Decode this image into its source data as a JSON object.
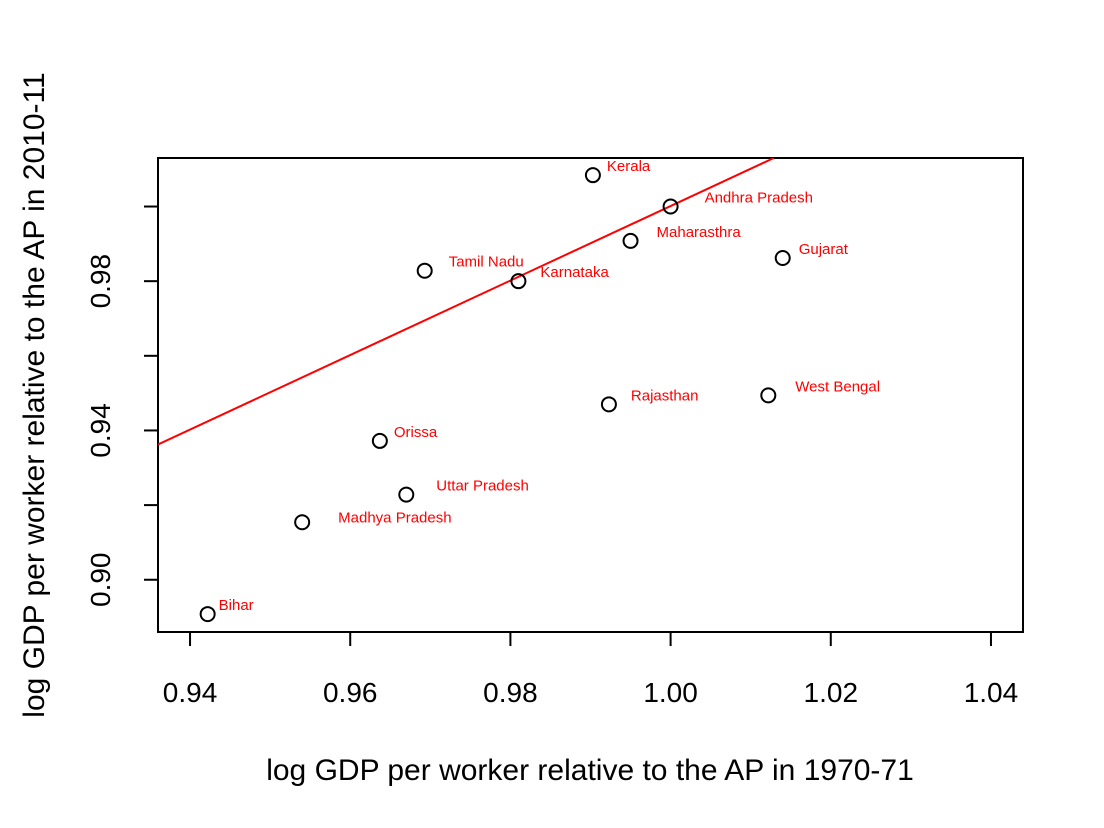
{
  "chart_data": {
    "type": "scatter",
    "title": "",
    "xlabel": "log GDP per worker relative to the AP in 1970-71",
    "ylabel": "log GDP per worker relative to the AP in 2010-11",
    "xlim": [
      0.936,
      1.044
    ],
    "ylim": [
      0.886,
      1.013
    ],
    "xticks": [
      0.94,
      0.96,
      0.98,
      1.0,
      1.02,
      1.04
    ],
    "xtick_labels": [
      "0.94",
      "0.96",
      "0.98",
      "1.00",
      "1.02",
      "1.04"
    ],
    "yticks": [
      0.9,
      0.92,
      0.94,
      0.96,
      0.98,
      1.0
    ],
    "ytick_labels": [
      "0.90",
      "",
      "0.94",
      "",
      "0.98",
      ""
    ],
    "grid": false,
    "label_color": "#ff0000",
    "line_color": "#ff0000",
    "points": [
      {
        "label": "Kerala",
        "x": 0.9903,
        "y": 1.0084
      },
      {
        "label": "Andhra Pradesh",
        "x": 1.0,
        "y": 1.0
      },
      {
        "label": "Maharasthra",
        "x": 0.995,
        "y": 0.9908
      },
      {
        "label": "Gujarat",
        "x": 1.014,
        "y": 0.9862
      },
      {
        "label": "Tamil Nadu",
        "x": 0.9693,
        "y": 0.9828
      },
      {
        "label": "Karnataka",
        "x": 0.981,
        "y": 0.98
      },
      {
        "label": "Rajasthan",
        "x": 0.9923,
        "y": 0.947
      },
      {
        "label": "West Bengal",
        "x": 1.0122,
        "y": 0.9494
      },
      {
        "label": "Orissa",
        "x": 0.9637,
        "y": 0.9372
      },
      {
        "label": "Uttar Pradesh",
        "x": 0.967,
        "y": 0.9228
      },
      {
        "label": "Madhya Pradesh",
        "x": 0.954,
        "y": 0.9154
      },
      {
        "label": "Bihar",
        "x": 0.9422,
        "y": 0.8908
      }
    ],
    "fit_line": {
      "x": [
        0.936,
        1.01289
      ],
      "y": [
        0.93624,
        1.013
      ]
    }
  }
}
